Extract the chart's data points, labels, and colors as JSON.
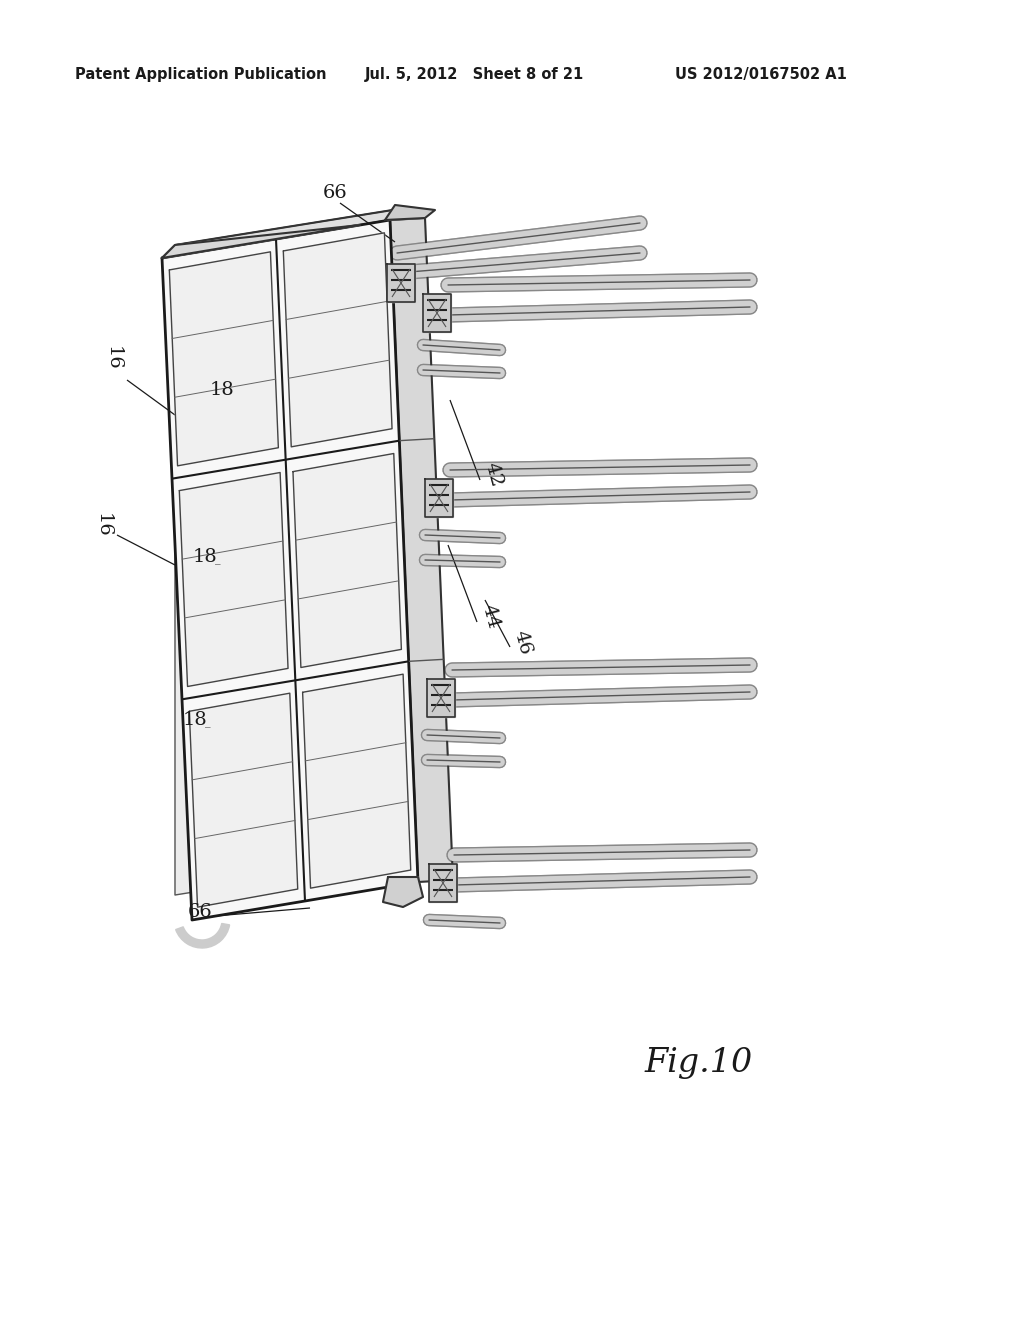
{
  "bg_color": "#ffffff",
  "header_left": "Patent Application Publication",
  "header_mid": "Jul. 5, 2012   Sheet 8 of 21",
  "header_right": "US 2012/0167502 A1",
  "fig_label": "Fig.10"
}
